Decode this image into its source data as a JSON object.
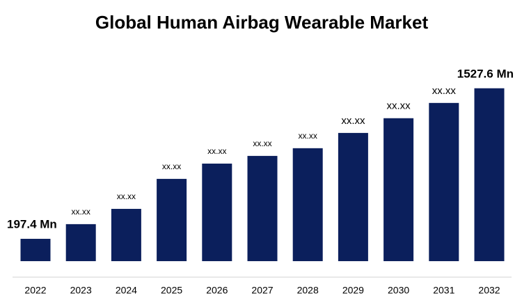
{
  "chart_data": {
    "type": "bar",
    "title": "Global Human Airbag Wearable Market",
    "categories": [
      "2022",
      "2023",
      "2024",
      "2025",
      "2026",
      "2027",
      "2028",
      "2029",
      "2030",
      "2031",
      "2032"
    ],
    "values": [
      197.4,
      327,
      462,
      727,
      862,
      930,
      998,
      1133,
      1263,
      1398,
      1527.6
    ],
    "value_labels": [
      "197.4 Mn",
      "xx.xx",
      "xx.xx",
      "xx.xx",
      "xx.xx",
      "xx.xx",
      "xx.xx",
      "xx.xx",
      "xx.xx",
      "xx.xx",
      "1527.6 Mn"
    ],
    "color": "#0b1f5c",
    "ylim": [
      -141.3,
      1600
    ]
  }
}
